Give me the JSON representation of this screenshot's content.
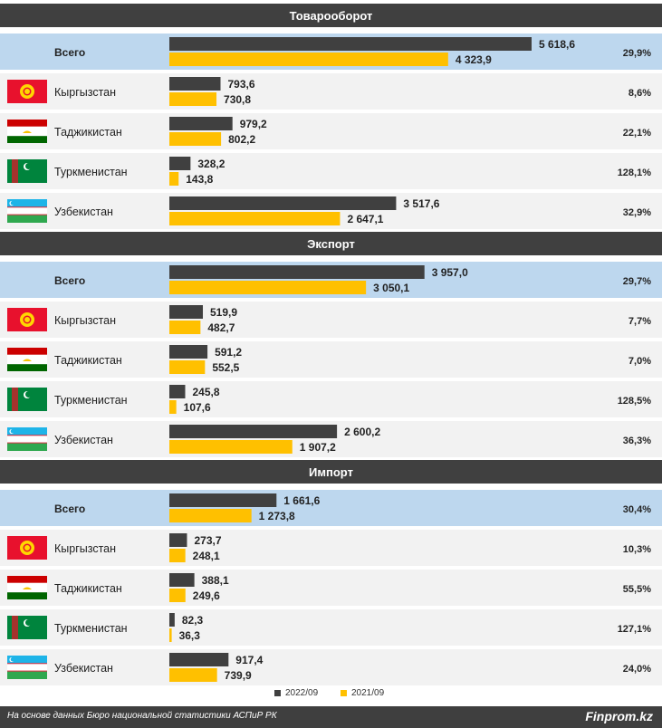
{
  "colors": {
    "header_bg": "#404040",
    "total_row_bg": "#bdd7ee",
    "row_bg": "#f2f2f2",
    "bar_2022": "#404040",
    "bar_2021": "#ffc000"
  },
  "legend": {
    "s2022": "2022/09",
    "s2021": "2021/09"
  },
  "footer": {
    "source": "На основе данных Бюро национальной статистики АСПиР РК",
    "brand": "Finprom.kz"
  },
  "chart_data": {
    "type": "bar",
    "orientation": "horizontal",
    "series_names": [
      "2022/09",
      "2021/09"
    ],
    "flags": [
      "kyrgyzstan-flag-icon",
      "tajikistan-flag-icon",
      "turkmenistan-flag-icon",
      "uzbekistan-flag-icon"
    ],
    "sections": [
      {
        "title": "Товарооборот",
        "rows": [
          {
            "label": "Всего",
            "v2022": 5618.6,
            "v2021": 4323.9,
            "v2022_label": "5 618,6",
            "v2021_label": "4 323,9",
            "change": "29,9%"
          },
          {
            "label": "Кыргызстан",
            "v2022": 793.6,
            "v2021": 730.8,
            "v2022_label": "793,6",
            "v2021_label": "730,8",
            "change": "8,6%"
          },
          {
            "label": "Таджикистан",
            "v2022": 979.2,
            "v2021": 802.2,
            "v2022_label": "979,2",
            "v2021_label": "802,2",
            "change": "22,1%"
          },
          {
            "label": "Туркменистан",
            "v2022": 328.2,
            "v2021": 143.8,
            "v2022_label": "328,2",
            "v2021_label": "143,8",
            "change": "128,1%"
          },
          {
            "label": "Узбекистан",
            "v2022": 3517.6,
            "v2021": 2647.1,
            "v2022_label": "3 517,6",
            "v2021_label": "2 647,1",
            "change": "32,9%"
          }
        ]
      },
      {
        "title": "Экспорт",
        "rows": [
          {
            "label": "Всего",
            "v2022": 3957.0,
            "v2021": 3050.1,
            "v2022_label": "3 957,0",
            "v2021_label": "3 050,1",
            "change": "29,7%"
          },
          {
            "label": "Кыргызстан",
            "v2022": 519.9,
            "v2021": 482.7,
            "v2022_label": "519,9",
            "v2021_label": "482,7",
            "change": "7,7%"
          },
          {
            "label": "Таджикистан",
            "v2022": 591.2,
            "v2021": 552.5,
            "v2022_label": "591,2",
            "v2021_label": "552,5",
            "change": "7,0%"
          },
          {
            "label": "Туркменистан",
            "v2022": 245.8,
            "v2021": 107.6,
            "v2022_label": "245,8",
            "v2021_label": "107,6",
            "change": "128,5%"
          },
          {
            "label": "Узбекистан",
            "v2022": 2600.2,
            "v2021": 1907.2,
            "v2022_label": "2 600,2",
            "v2021_label": "1 907,2",
            "change": "36,3%"
          }
        ]
      },
      {
        "title": "Импорт",
        "rows": [
          {
            "label": "Всего",
            "v2022": 1661.6,
            "v2021": 1273.8,
            "v2022_label": "1 661,6",
            "v2021_label": "1 273,8",
            "change": "30,4%"
          },
          {
            "label": "Кыргызстан",
            "v2022": 273.7,
            "v2021": 248.1,
            "v2022_label": "273,7",
            "v2021_label": "248,1",
            "change": "10,3%"
          },
          {
            "label": "Таджикистан",
            "v2022": 388.1,
            "v2021": 249.6,
            "v2022_label": "388,1",
            "v2021_label": "249,6",
            "change": "55,5%"
          },
          {
            "label": "Туркменистан",
            "v2022": 82.3,
            "v2021": 36.3,
            "v2022_label": "82,3",
            "v2021_label": "36,3",
            "change": "127,1%"
          },
          {
            "label": "Узбекистан",
            "v2022": 917.4,
            "v2021": 739.9,
            "v2022_label": "917,4",
            "v2021_label": "739,9",
            "change": "24,0%"
          }
        ]
      }
    ]
  }
}
